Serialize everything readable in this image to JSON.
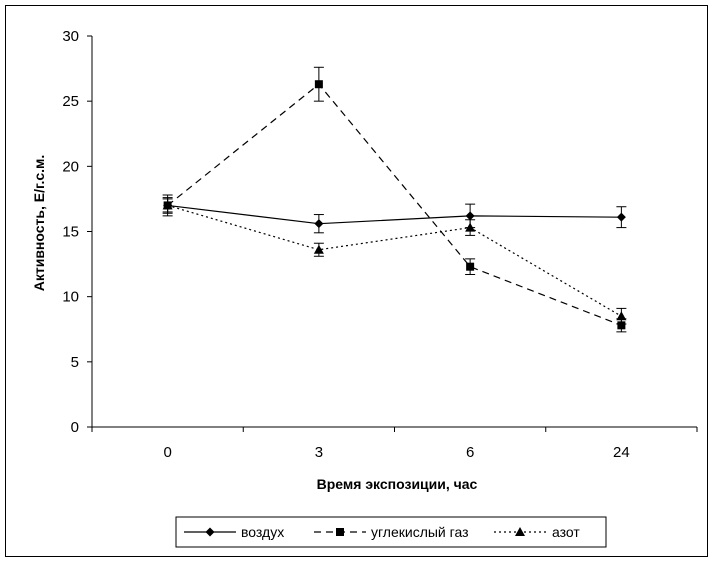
{
  "chart_data": {
    "type": "line",
    "categories": [
      "0",
      "3",
      "6",
      "24"
    ],
    "xlabel": "Время экспозиции, час",
    "ylabel": "Активность, Е/г.с.м.",
    "ylim": [
      0,
      30
    ],
    "yticks": [
      0,
      5,
      10,
      15,
      20,
      25,
      30
    ],
    "grid": false,
    "legend_position": "bottom",
    "series": [
      {
        "name": "воздух",
        "marker": "diamond",
        "dash": "solid",
        "values": [
          17.0,
          15.6,
          16.2,
          16.1
        ],
        "errors": [
          0.8,
          0.7,
          0.9,
          0.8
        ]
      },
      {
        "name": "углекислый газ",
        "marker": "square",
        "dash": "dashed",
        "values": [
          17.0,
          26.3,
          12.3,
          7.8
        ],
        "errors": [
          0.5,
          1.3,
          0.6,
          0.5
        ]
      },
      {
        "name": "азот",
        "marker": "triangle",
        "dash": "dotted",
        "values": [
          17.0,
          13.6,
          15.3,
          8.5
        ],
        "errors": [
          0.6,
          0.5,
          0.6,
          0.6
        ]
      }
    ]
  }
}
